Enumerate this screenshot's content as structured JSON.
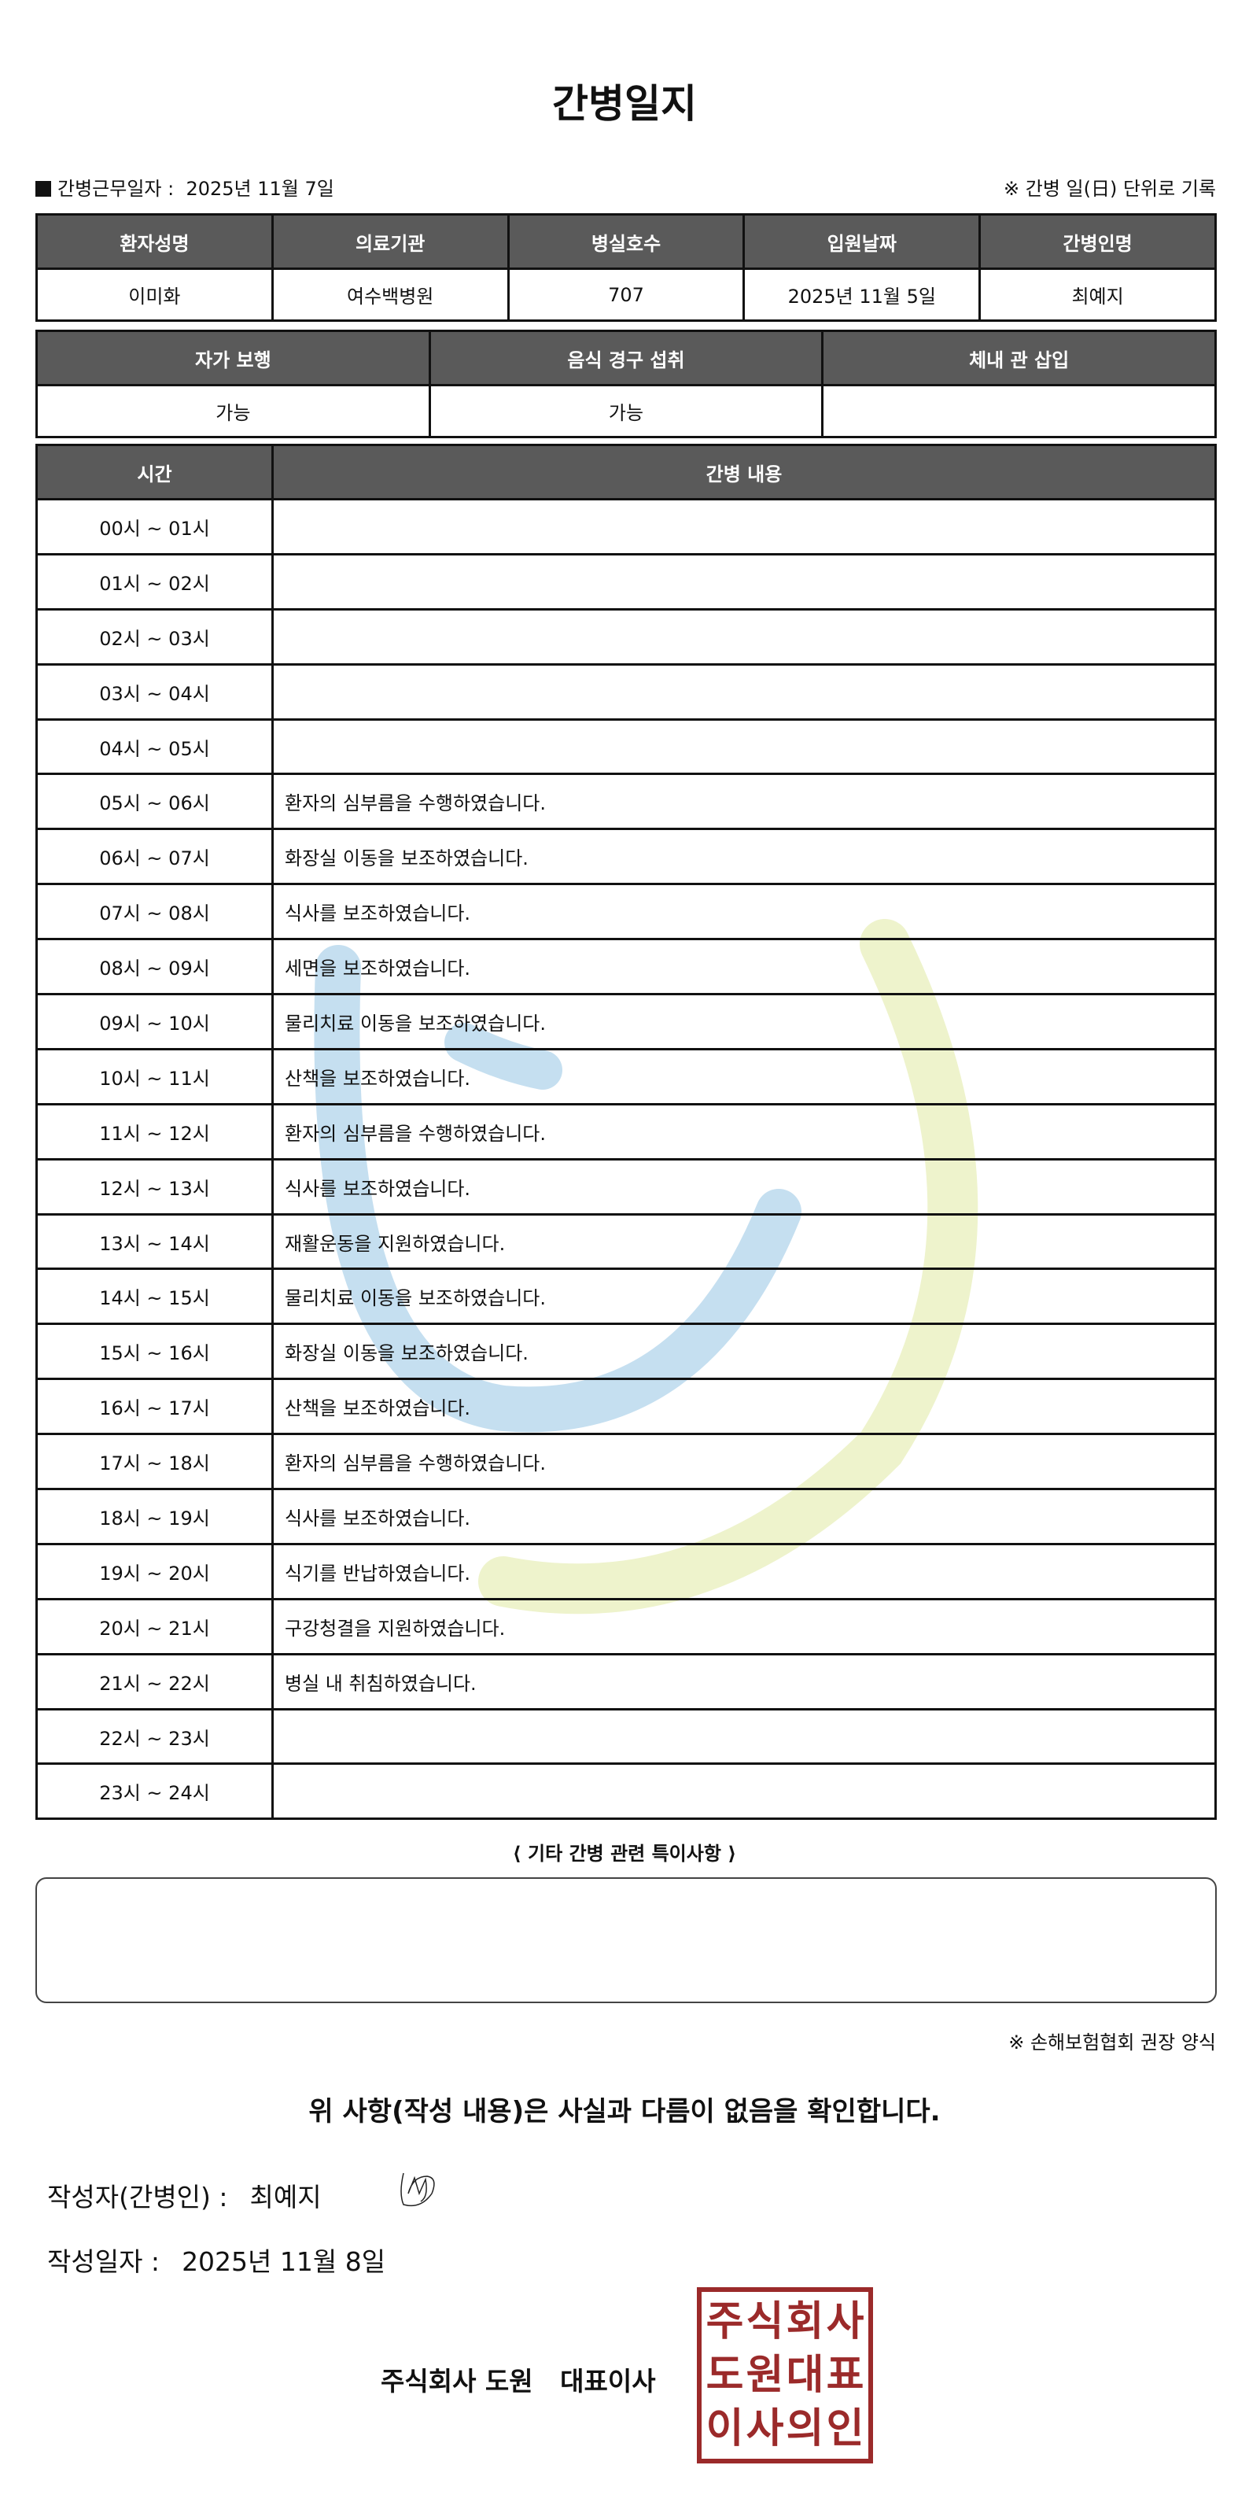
{
  "title": "간병일지",
  "work_date_label": "간병근무일자",
  "work_date": "2025년 11월 7일",
  "record_note": "※ 간병 일(日) 단위로 기록",
  "info": {
    "headers": [
      "환자성명",
      "의료기관",
      "병실호수",
      "입원날짜",
      "간병인명"
    ],
    "values": [
      "이미화",
      "여수백병원",
      "707",
      "2025년 11월 5일",
      "최예지"
    ]
  },
  "status": {
    "headers": [
      "자가 보행",
      "음식 경구 섭취",
      "체내 관 삽입"
    ],
    "values": [
      "가능",
      "가능",
      ""
    ]
  },
  "log": {
    "headers": [
      "시간",
      "간병 내용"
    ],
    "rows": [
      {
        "time": "00시 ~ 01시",
        "content": ""
      },
      {
        "time": "01시 ~ 02시",
        "content": ""
      },
      {
        "time": "02시 ~ 03시",
        "content": ""
      },
      {
        "time": "03시 ~ 04시",
        "content": ""
      },
      {
        "time": "04시 ~ 05시",
        "content": ""
      },
      {
        "time": "05시 ~ 06시",
        "content": "환자의 심부름을 수행하였습니다."
      },
      {
        "time": "06시 ~ 07시",
        "content": "화장실 이동을 보조하였습니다."
      },
      {
        "time": "07시 ~ 08시",
        "content": "식사를 보조하였습니다."
      },
      {
        "time": "08시 ~ 09시",
        "content": "세면을 보조하였습니다."
      },
      {
        "time": "09시 ~ 10시",
        "content": "물리치료 이동을 보조하였습니다."
      },
      {
        "time": "10시 ~ 11시",
        "content": "산책을 보조하였습니다."
      },
      {
        "time": "11시 ~ 12시",
        "content": "환자의 심부름을 수행하였습니다."
      },
      {
        "time": "12시 ~ 13시",
        "content": "식사를 보조하였습니다."
      },
      {
        "time": "13시 ~ 14시",
        "content": "재활운동을 지원하였습니다."
      },
      {
        "time": "14시 ~ 15시",
        "content": "물리치료 이동을 보조하였습니다."
      },
      {
        "time": "15시 ~ 16시",
        "content": "화장실 이동을 보조하였습니다."
      },
      {
        "time": "16시 ~ 17시",
        "content": "산책을 보조하였습니다."
      },
      {
        "time": "17시 ~ 18시",
        "content": "환자의 심부름을 수행하였습니다."
      },
      {
        "time": "18시 ~ 19시",
        "content": "식사를 보조하였습니다."
      },
      {
        "time": "19시 ~ 20시",
        "content": "식기를 반납하였습니다."
      },
      {
        "time": "20시 ~ 21시",
        "content": "구강청결을 지원하였습니다."
      },
      {
        "time": "21시 ~ 22시",
        "content": "병실 내 취침하였습니다."
      },
      {
        "time": "22시 ~ 23시",
        "content": ""
      },
      {
        "time": "23시 ~ 24시",
        "content": ""
      }
    ]
  },
  "notes_label": "⟨ 기타 간병 관련 특이사항 ⟩",
  "notes_value": "",
  "association_note": "※ 손해보험협회 권장 양식",
  "confirmation": "위 사항(작성 내용)은 사실과 다름이 없음을 확인합니다.",
  "writer_label": "작성자(간병인) :",
  "writer_name": "최예지",
  "written_date_label": "작성일자 :",
  "written_date": "2025년 11월 8일",
  "company": "주식회사 도원   대표이사",
  "stamp_text": "주식회사도원대표이사의인",
  "colors": {
    "header_bg": "#5a5a5a",
    "stamp": "#9b2a2a",
    "watermark_blue": "#c5dff0",
    "watermark_green": "#eef3cc"
  }
}
